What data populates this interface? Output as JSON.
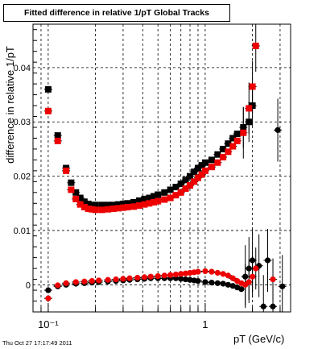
{
  "chart_data": {
    "type": "scatter",
    "title": "Fitted difference in relative 1/pT  Global Tracks",
    "xlabel": "pT (GeV/c)",
    "ylabel": "difference in relative 1/pT",
    "xscale": "log",
    "xlim": [
      0.08,
      3.5
    ],
    "ylim": [
      -0.005,
      0.048
    ],
    "x_ticks": [
      {
        "value": 0.1,
        "label": "10⁻¹"
      },
      {
        "value": 1,
        "label": "1"
      }
    ],
    "y_ticks": [
      {
        "value": 0,
        "label": "0"
      },
      {
        "value": 0.01,
        "label": "0.01"
      },
      {
        "value": 0.02,
        "label": "0.02"
      },
      {
        "value": 0.03,
        "label": "0.03"
      },
      {
        "value": 0.04,
        "label": "0.04"
      }
    ],
    "grid": true,
    "footer": "Thu Oct 27 17:17:49 2011",
    "series": [
      {
        "marker": "square",
        "color": "#000000",
        "points": [
          [
            0.1,
            0.036
          ],
          [
            0.115,
            0.0275
          ],
          [
            0.13,
            0.0215
          ],
          [
            0.14,
            0.0188
          ],
          [
            0.15,
            0.017
          ],
          [
            0.16,
            0.016
          ],
          [
            0.17,
            0.0153
          ],
          [
            0.18,
            0.0149
          ],
          [
            0.19,
            0.0147
          ],
          [
            0.2,
            0.0147
          ],
          [
            0.22,
            0.0147
          ],
          [
            0.24,
            0.0147
          ],
          [
            0.26,
            0.0147
          ],
          [
            0.28,
            0.0148
          ],
          [
            0.3,
            0.0149
          ],
          [
            0.32,
            0.015
          ],
          [
            0.35,
            0.0152
          ],
          [
            0.38,
            0.0155
          ],
          [
            0.41,
            0.0158
          ],
          [
            0.44,
            0.016
          ],
          [
            0.47,
            0.0163
          ],
          [
            0.5,
            0.0166
          ],
          [
            0.55,
            0.017
          ],
          [
            0.6,
            0.0175
          ],
          [
            0.65,
            0.018
          ],
          [
            0.7,
            0.0186
          ],
          [
            0.75,
            0.0193
          ],
          [
            0.8,
            0.02
          ],
          [
            0.85,
            0.0208
          ],
          [
            0.9,
            0.0215
          ],
          [
            0.95,
            0.022
          ],
          [
            1.0,
            0.0225
          ],
          [
            1.1,
            0.023
          ],
          [
            1.2,
            0.024
          ],
          [
            1.3,
            0.025
          ],
          [
            1.4,
            0.026
          ],
          [
            1.5,
            0.027
          ],
          [
            1.6,
            0.0278
          ],
          [
            1.75,
            0.029
          ],
          [
            1.9,
            0.03
          ],
          [
            2.0,
            0.033
          ]
        ]
      },
      {
        "marker": "square",
        "color": "#ee0000",
        "points": [
          [
            0.1,
            0.032
          ],
          [
            0.115,
            0.0265
          ],
          [
            0.13,
            0.021
          ],
          [
            0.14,
            0.0175
          ],
          [
            0.15,
            0.0158
          ],
          [
            0.16,
            0.0148
          ],
          [
            0.17,
            0.0143
          ],
          [
            0.18,
            0.014
          ],
          [
            0.19,
            0.0139
          ],
          [
            0.2,
            0.0138
          ],
          [
            0.22,
            0.0138
          ],
          [
            0.24,
            0.0139
          ],
          [
            0.26,
            0.014
          ],
          [
            0.28,
            0.0141
          ],
          [
            0.3,
            0.0142
          ],
          [
            0.32,
            0.0143
          ],
          [
            0.35,
            0.0144
          ],
          [
            0.38,
            0.0146
          ],
          [
            0.41,
            0.0148
          ],
          [
            0.44,
            0.015
          ],
          [
            0.47,
            0.0152
          ],
          [
            0.5,
            0.0154
          ],
          [
            0.55,
            0.0157
          ],
          [
            0.6,
            0.016
          ],
          [
            0.65,
            0.0165
          ],
          [
            0.7,
            0.017
          ],
          [
            0.75,
            0.0177
          ],
          [
            0.8,
            0.0183
          ],
          [
            0.85,
            0.019
          ],
          [
            0.9,
            0.0197
          ],
          [
            0.95,
            0.0203
          ],
          [
            1.0,
            0.021
          ],
          [
            1.1,
            0.0217
          ],
          [
            1.2,
            0.0225
          ],
          [
            1.3,
            0.0235
          ],
          [
            1.4,
            0.0245
          ],
          [
            1.5,
            0.0255
          ],
          [
            1.6,
            0.0265
          ],
          [
            1.75,
            0.028
          ],
          [
            1.9,
            0.0325
          ],
          [
            2.0,
            0.0365
          ],
          [
            2.1,
            0.044
          ]
        ]
      },
      {
        "marker": "circle",
        "color": "#000000",
        "points": [
          [
            0.1,
            -0.001
          ],
          [
            0.115,
            -0.0003
          ],
          [
            0.13,
            0.0
          ],
          [
            0.15,
            0.0002
          ],
          [
            0.17,
            0.0003
          ],
          [
            0.19,
            0.0004
          ],
          [
            0.21,
            0.0005
          ],
          [
            0.24,
            0.0006
          ],
          [
            0.27,
            0.0007
          ],
          [
            0.3,
            0.0008
          ],
          [
            0.33,
            0.0009
          ],
          [
            0.37,
            0.001
          ],
          [
            0.41,
            0.0011
          ],
          [
            0.45,
            0.0012
          ],
          [
            0.5,
            0.0012
          ],
          [
            0.55,
            0.0012
          ],
          [
            0.6,
            0.0012
          ],
          [
            0.65,
            0.0012
          ],
          [
            0.7,
            0.0011
          ],
          [
            0.75,
            0.001
          ],
          [
            0.8,
            0.0009
          ],
          [
            0.85,
            0.0008
          ],
          [
            0.9,
            0.0007
          ],
          [
            1.0,
            0.0005
          ],
          [
            1.1,
            0.0004
          ],
          [
            1.2,
            0.0003
          ],
          [
            1.3,
            0.0002
          ],
          [
            1.4,
            0.0
          ],
          [
            1.5,
            -0.0002
          ],
          [
            1.6,
            -0.0005
          ],
          [
            1.7,
            -0.0008
          ],
          [
            1.8,
            0.0015
          ],
          [
            1.9,
            0.003
          ],
          [
            2.0,
            0.0045
          ],
          [
            2.2,
            0.0035
          ],
          [
            2.35,
            -0.004
          ],
          [
            2.5,
            0.0045
          ],
          [
            2.7,
            -0.004
          ],
          [
            2.9,
            0.0285
          ],
          [
            3.1,
            -0.0003
          ]
        ]
      },
      {
        "marker": "circle",
        "color": "#ee0000",
        "points": [
          [
            0.1,
            -0.0025
          ],
          [
            0.115,
            -0.0001
          ],
          [
            0.13,
            0.0003
          ],
          [
            0.15,
            0.0005
          ],
          [
            0.17,
            0.0006
          ],
          [
            0.19,
            0.0007
          ],
          [
            0.21,
            0.0008
          ],
          [
            0.24,
            0.0009
          ],
          [
            0.27,
            0.001
          ],
          [
            0.3,
            0.0011
          ],
          [
            0.33,
            0.0012
          ],
          [
            0.37,
            0.0013
          ],
          [
            0.41,
            0.0014
          ],
          [
            0.45,
            0.0015
          ],
          [
            0.5,
            0.0016
          ],
          [
            0.55,
            0.0017
          ],
          [
            0.6,
            0.0018
          ],
          [
            0.65,
            0.0019
          ],
          [
            0.7,
            0.002
          ],
          [
            0.75,
            0.0021
          ],
          [
            0.8,
            0.0022
          ],
          [
            0.85,
            0.0023
          ],
          [
            0.9,
            0.0024
          ],
          [
            1.0,
            0.0025
          ],
          [
            1.1,
            0.0024
          ],
          [
            1.2,
            0.0022
          ],
          [
            1.3,
            0.002
          ],
          [
            1.4,
            0.0017
          ],
          [
            1.5,
            0.0012
          ],
          [
            1.6,
            0.0007
          ],
          [
            1.7,
            0.0003
          ],
          [
            1.8,
            0.0
          ],
          [
            1.9,
            0.0005
          ],
          [
            2.0,
            0.0015
          ],
          [
            2.1,
            0.003
          ],
          [
            2.7,
            0.001
          ]
        ]
      }
    ]
  }
}
